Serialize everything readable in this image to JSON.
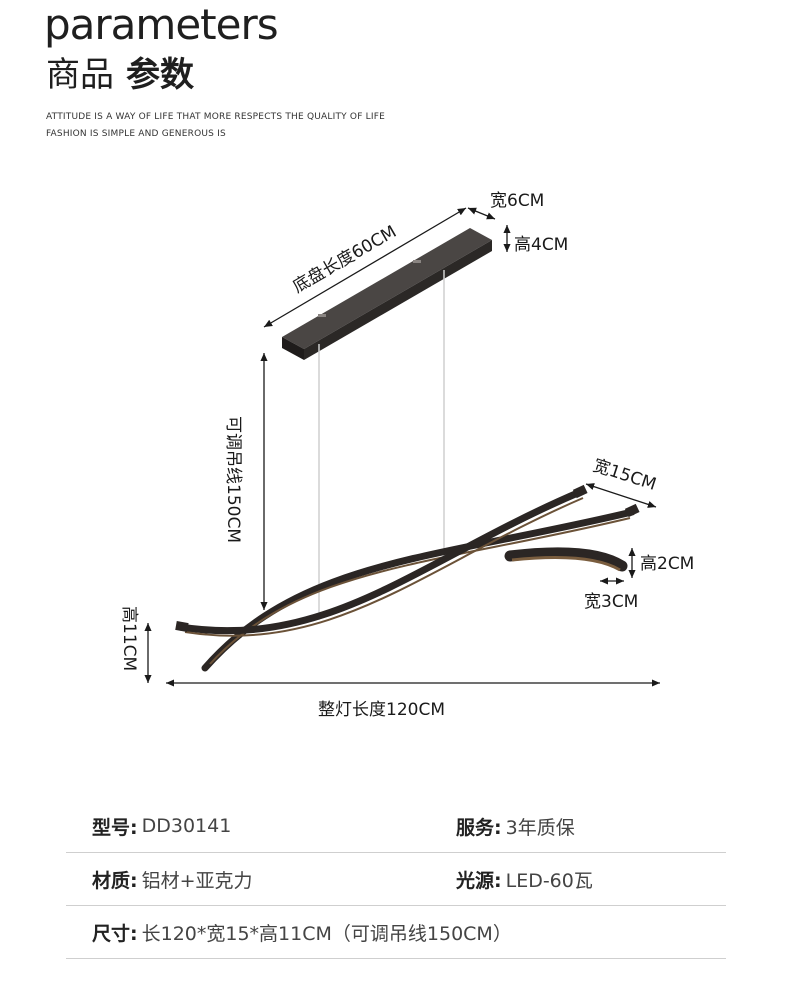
{
  "header": {
    "title_en": "parameters",
    "title_cn_light": "商品",
    "title_cn_bold": "参数",
    "tagline_1": "ATTITUDE IS A WAY OF LIFE THAT MORE RESPECTS THE QUALITY OF LIFE",
    "tagline_2": "FASHION IS SIMPLE AND GENEROUS IS"
  },
  "diagram": {
    "canopy_length": "底盘长度60CM",
    "canopy_width": "宽6CM",
    "canopy_height": "高4CM",
    "suspension_length": "可调吊线150CM",
    "arm_width": "宽15CM",
    "profile_height": "高2CM",
    "profile_width": "宽3CM",
    "body_height": "高11CM",
    "total_length": "整灯长度120CM"
  },
  "specs": {
    "model_key": "型号:",
    "model_val": "DD30141",
    "service_key": "服务:",
    "service_val": "3年质保",
    "material_key": "材质:",
    "material_val": "铝材+亚克力",
    "light_key": "光源:",
    "light_val": "LED-60瓦",
    "size_key": "尺寸:",
    "size_val": "长120*宽15*高11CM（可调吊线150CM）"
  },
  "colors": {
    "lamp_body": "#2b2624",
    "lamp_glow": "#6b5238",
    "dimension_line": "#1a1a1a",
    "divider": "#cfcfcf"
  }
}
